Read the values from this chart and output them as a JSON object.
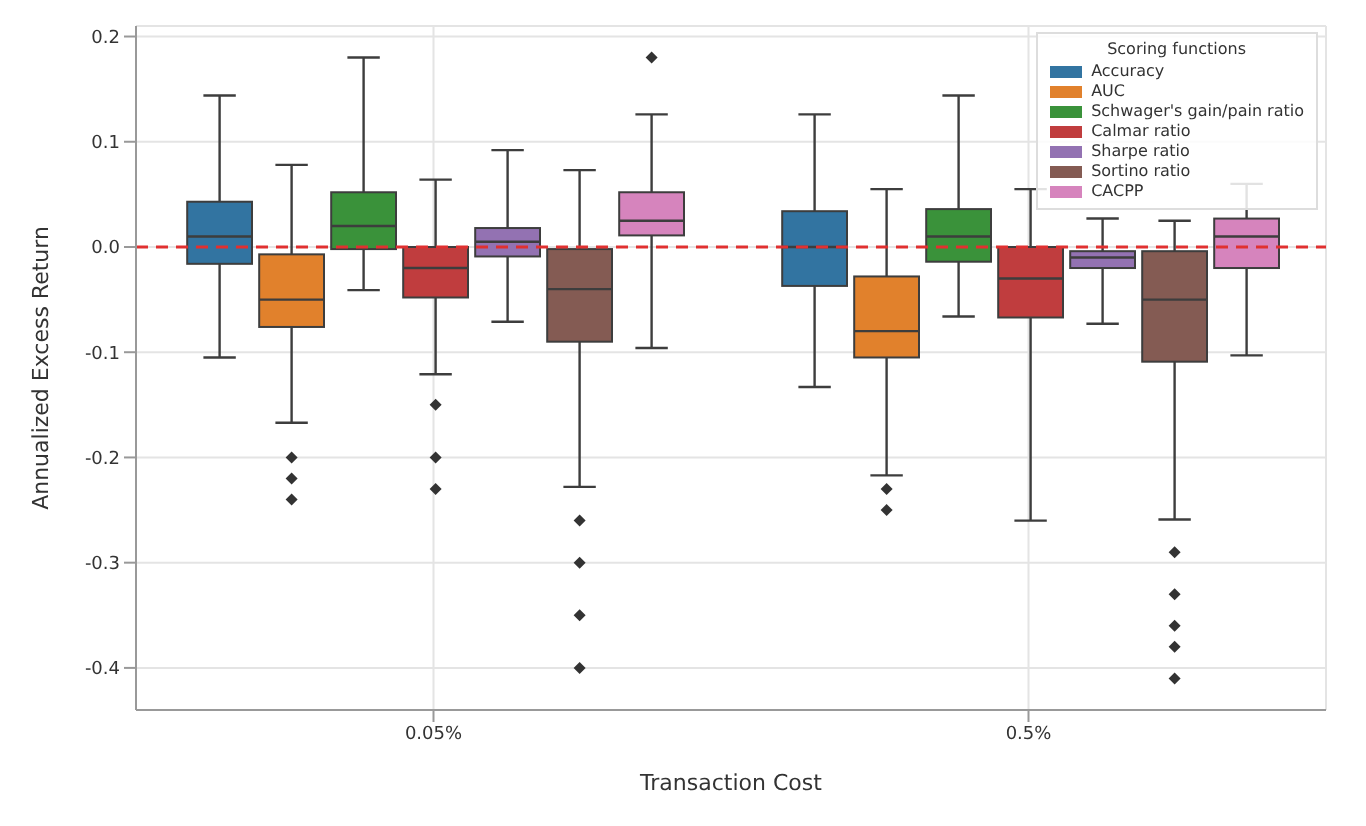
{
  "chart_data": {
    "type": "box",
    "xlabel": "Transaction Cost",
    "ylabel": "Annualized Excess Return",
    "legend_title": "Scoring functions",
    "categories": [
      "0.05%",
      "0.5%"
    ],
    "ylim": [
      -0.44,
      0.21
    ],
    "yticks": [
      -0.4,
      -0.3,
      -0.2,
      -0.1,
      {
        "value": 0,
        "label": "0.0"
      },
      0.1,
      0.2
    ],
    "grid": true,
    "legend": "top right",
    "ref_lines": [
      {
        "axis": "y",
        "value": 0,
        "color": "#e03030",
        "line_style": "dashed"
      }
    ],
    "series": [
      {
        "name": "Accuracy",
        "color": "#3274a1",
        "boxes": [
          {
            "low": -0.105,
            "q1": -0.016,
            "median": 0.01,
            "q3": 0.043,
            "high": 0.144
          },
          {
            "low": -0.133,
            "q1": -0.037,
            "median": 0.0,
            "q3": 0.034,
            "high": 0.126
          }
        ]
      },
      {
        "name": "AUC",
        "color": "#e1812c",
        "boxes": [
          {
            "low": -0.167,
            "q1": -0.076,
            "median": -0.05,
            "q3": -0.007,
            "high": 0.078,
            "outliers": [
              -0.2,
              -0.22,
              -0.24
            ]
          },
          {
            "low": -0.217,
            "q1": -0.105,
            "median": -0.08,
            "q3": -0.028,
            "high": 0.055,
            "outliers": [
              -0.23,
              -0.25
            ]
          }
        ]
      },
      {
        "name": "Schwager's gain/pain ratio",
        "color": "#3a923a",
        "boxes": [
          {
            "low": -0.041,
            "q1": -0.002,
            "median": 0.02,
            "q3": 0.052,
            "high": 0.18
          },
          {
            "low": -0.066,
            "q1": -0.014,
            "median": 0.01,
            "q3": 0.036,
            "high": 0.144
          }
        ]
      },
      {
        "name": "Calmar ratio",
        "color": "#c03d3e",
        "boxes": [
          {
            "low": -0.121,
            "q1": -0.048,
            "median": -0.02,
            "q3": 0.0,
            "high": 0.064,
            "outliers": [
              -0.15,
              -0.2,
              -0.23
            ]
          },
          {
            "low": -0.26,
            "q1": -0.067,
            "median": -0.03,
            "q3": 0.0,
            "high": 0.055
          }
        ]
      },
      {
        "name": "Sharpe ratio",
        "color": "#9372b2",
        "boxes": [
          {
            "low": -0.071,
            "q1": -0.009,
            "median": 0.005,
            "q3": 0.018,
            "high": 0.092
          },
          {
            "low": -0.073,
            "q1": -0.02,
            "median": -0.01,
            "q3": -0.004,
            "high": 0.027
          }
        ]
      },
      {
        "name": "Sortino ratio",
        "color": "#845b53",
        "boxes": [
          {
            "low": -0.228,
            "q1": -0.09,
            "median": -0.04,
            "q3": -0.002,
            "high": 0.073,
            "outliers": [
              -0.26,
              -0.3,
              -0.35,
              -0.4
            ]
          },
          {
            "low": -0.259,
            "q1": -0.109,
            "median": -0.05,
            "q3": -0.004,
            "high": 0.025,
            "outliers": [
              -0.29,
              -0.33,
              -0.36,
              -0.38,
              -0.41
            ]
          }
        ]
      },
      {
        "name": "CACPP",
        "color": "#d684bd",
        "boxes": [
          {
            "low": -0.096,
            "q1": 0.011,
            "median": 0.025,
            "q3": 0.052,
            "high": 0.126,
            "outliers": [
              0.18
            ]
          },
          {
            "low": -0.103,
            "q1": -0.02,
            "median": 0.01,
            "q3": 0.027,
            "high": 0.06
          }
        ]
      }
    ]
  }
}
